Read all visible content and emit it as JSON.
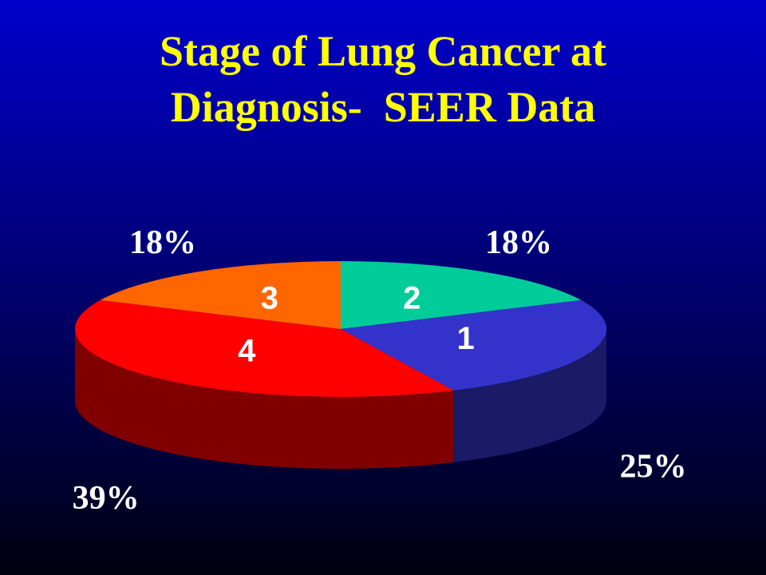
{
  "chart_data": {
    "type": "pie3d",
    "title": [
      "Stage of Lung Cancer at",
      "Diagnosis-  SEER Data"
    ],
    "categories": [
      "2",
      "1",
      "4",
      "3"
    ],
    "values": [
      18,
      25,
      39,
      18
    ],
    "value_labels": [
      "18%",
      "25%",
      "39%",
      "18%"
    ],
    "colors": [
      "#00cc99",
      "#3333cc",
      "#ff0000",
      "#ff6600"
    ]
  }
}
